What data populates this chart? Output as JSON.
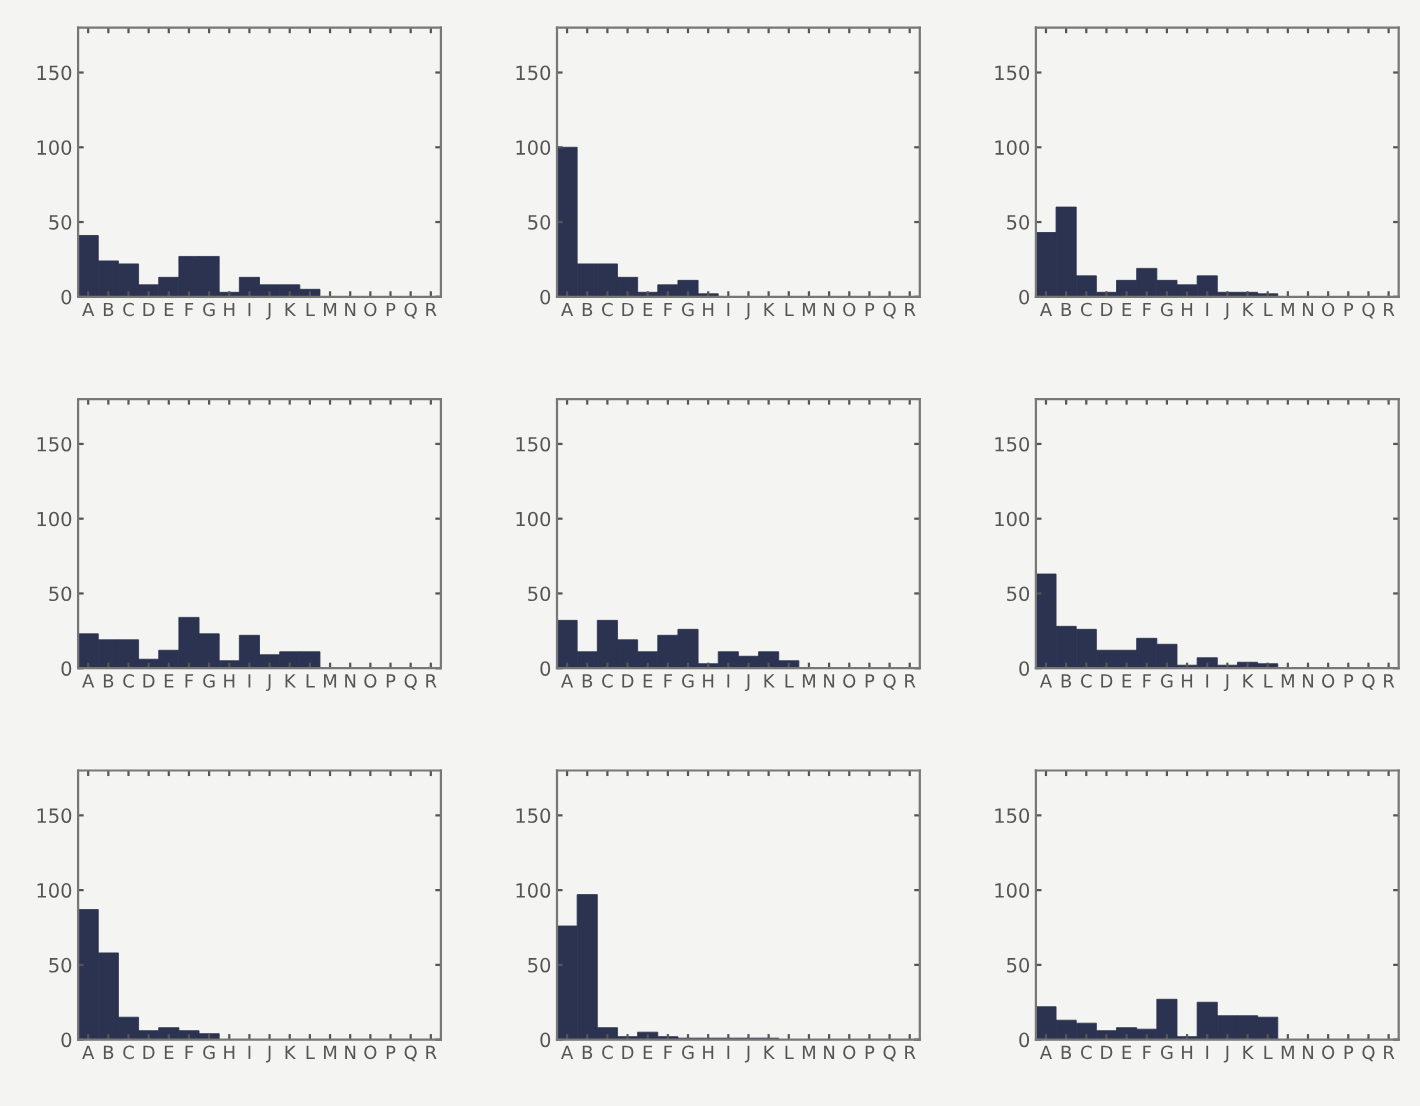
{
  "chart_data": [
    {
      "type": "bar",
      "categories": [
        "A",
        "B",
        "C",
        "D",
        "E",
        "F",
        "G",
        "H",
        "I",
        "J",
        "K",
        "L",
        "M",
        "N",
        "O",
        "P",
        "Q",
        "R"
      ],
      "values": [
        41,
        24,
        22,
        8,
        13,
        27,
        27,
        3,
        13,
        8,
        8,
        5,
        0,
        0,
        0,
        0,
        0,
        0
      ],
      "color": "#2b3350",
      "ylim": [
        0,
        180
      ],
      "yticks": [
        0,
        50,
        100,
        150
      ],
      "grid": false
    },
    {
      "type": "bar",
      "categories": [
        "A",
        "B",
        "C",
        "D",
        "E",
        "F",
        "G",
        "H",
        "I",
        "J",
        "K",
        "L",
        "M",
        "N",
        "O",
        "P",
        "Q",
        "R"
      ],
      "values": [
        100,
        22,
        22,
        13,
        3,
        8,
        11,
        2,
        0,
        0,
        0,
        0,
        0,
        0,
        0,
        0,
        0,
        0
      ],
      "color": "#2b3350",
      "ylim": [
        0,
        180
      ],
      "yticks": [
        0,
        50,
        100,
        150
      ],
      "grid": false
    },
    {
      "type": "bar",
      "categories": [
        "A",
        "B",
        "C",
        "D",
        "E",
        "F",
        "G",
        "H",
        "I",
        "J",
        "K",
        "L",
        "M",
        "N",
        "O",
        "P",
        "Q",
        "R"
      ],
      "values": [
        43,
        60,
        14,
        3,
        11,
        19,
        11,
        8,
        14,
        3,
        3,
        2,
        0,
        0,
        0,
        0,
        0,
        0
      ],
      "color": "#2b3350",
      "ylim": [
        0,
        180
      ],
      "yticks": [
        0,
        50,
        100,
        150
      ],
      "grid": false
    },
    {
      "type": "bar",
      "categories": [
        "A",
        "B",
        "C",
        "D",
        "E",
        "F",
        "G",
        "H",
        "I",
        "J",
        "K",
        "L",
        "M",
        "N",
        "O",
        "P",
        "Q",
        "R"
      ],
      "values": [
        23,
        19,
        19,
        6,
        12,
        34,
        23,
        5,
        22,
        9,
        11,
        11,
        0,
        0,
        0,
        0,
        0,
        0
      ],
      "color": "#2b3350",
      "ylim": [
        0,
        180
      ],
      "yticks": [
        0,
        50,
        100,
        150
      ],
      "grid": false
    },
    {
      "type": "bar",
      "categories": [
        "A",
        "B",
        "C",
        "D",
        "E",
        "F",
        "G",
        "H",
        "I",
        "J",
        "K",
        "L",
        "M",
        "N",
        "O",
        "P",
        "Q",
        "R"
      ],
      "values": [
        32,
        11,
        32,
        19,
        11,
        22,
        26,
        3,
        11,
        8,
        11,
        5,
        0,
        0,
        0,
        0,
        0,
        0
      ],
      "color": "#2b3350",
      "ylim": [
        0,
        180
      ],
      "yticks": [
        0,
        50,
        100,
        150
      ],
      "grid": false
    },
    {
      "type": "bar",
      "categories": [
        "A",
        "B",
        "C",
        "D",
        "E",
        "F",
        "G",
        "H",
        "I",
        "J",
        "K",
        "L",
        "M",
        "N",
        "O",
        "P",
        "Q",
        "R"
      ],
      "values": [
        63,
        28,
        26,
        12,
        12,
        20,
        16,
        2,
        7,
        2,
        4,
        3,
        0,
        0,
        0,
        0,
        0,
        0
      ],
      "color": "#2b3350",
      "ylim": [
        0,
        180
      ],
      "yticks": [
        0,
        50,
        100,
        150
      ],
      "grid": false
    },
    {
      "type": "bar",
      "categories": [
        "A",
        "B",
        "C",
        "D",
        "E",
        "F",
        "G",
        "H",
        "I",
        "J",
        "K",
        "L",
        "M",
        "N",
        "O",
        "P",
        "Q",
        "R"
      ],
      "values": [
        87,
        58,
        15,
        6,
        8,
        6,
        4,
        0,
        0,
        0,
        0,
        0,
        0,
        0,
        0,
        0,
        0,
        0
      ],
      "color": "#2b3350",
      "ylim": [
        0,
        180
      ],
      "yticks": [
        0,
        50,
        100,
        150
      ],
      "grid": false
    },
    {
      "type": "bar",
      "categories": [
        "A",
        "B",
        "C",
        "D",
        "E",
        "F",
        "G",
        "H",
        "I",
        "J",
        "K",
        "L",
        "M",
        "N",
        "O",
        "P",
        "Q",
        "R"
      ],
      "values": [
        76,
        97,
        8,
        2,
        5,
        2,
        1,
        1,
        1,
        1,
        1,
        0,
        0,
        0,
        0,
        0,
        0,
        0
      ],
      "color": "#2b3350",
      "ylim": [
        0,
        180
      ],
      "yticks": [
        0,
        50,
        100,
        150
      ],
      "grid": false
    },
    {
      "type": "bar",
      "categories": [
        "A",
        "B",
        "C",
        "D",
        "E",
        "F",
        "G",
        "H",
        "I",
        "J",
        "K",
        "L",
        "M",
        "N",
        "O",
        "P",
        "Q",
        "R"
      ],
      "values": [
        22,
        13,
        11,
        6,
        8,
        7,
        27,
        2,
        25,
        16,
        16,
        15,
        0,
        0,
        0,
        0,
        0,
        0
      ],
      "color": "#2b3350",
      "ylim": [
        0,
        180
      ],
      "yticks": [
        0,
        50,
        100,
        150
      ],
      "grid": false
    }
  ]
}
